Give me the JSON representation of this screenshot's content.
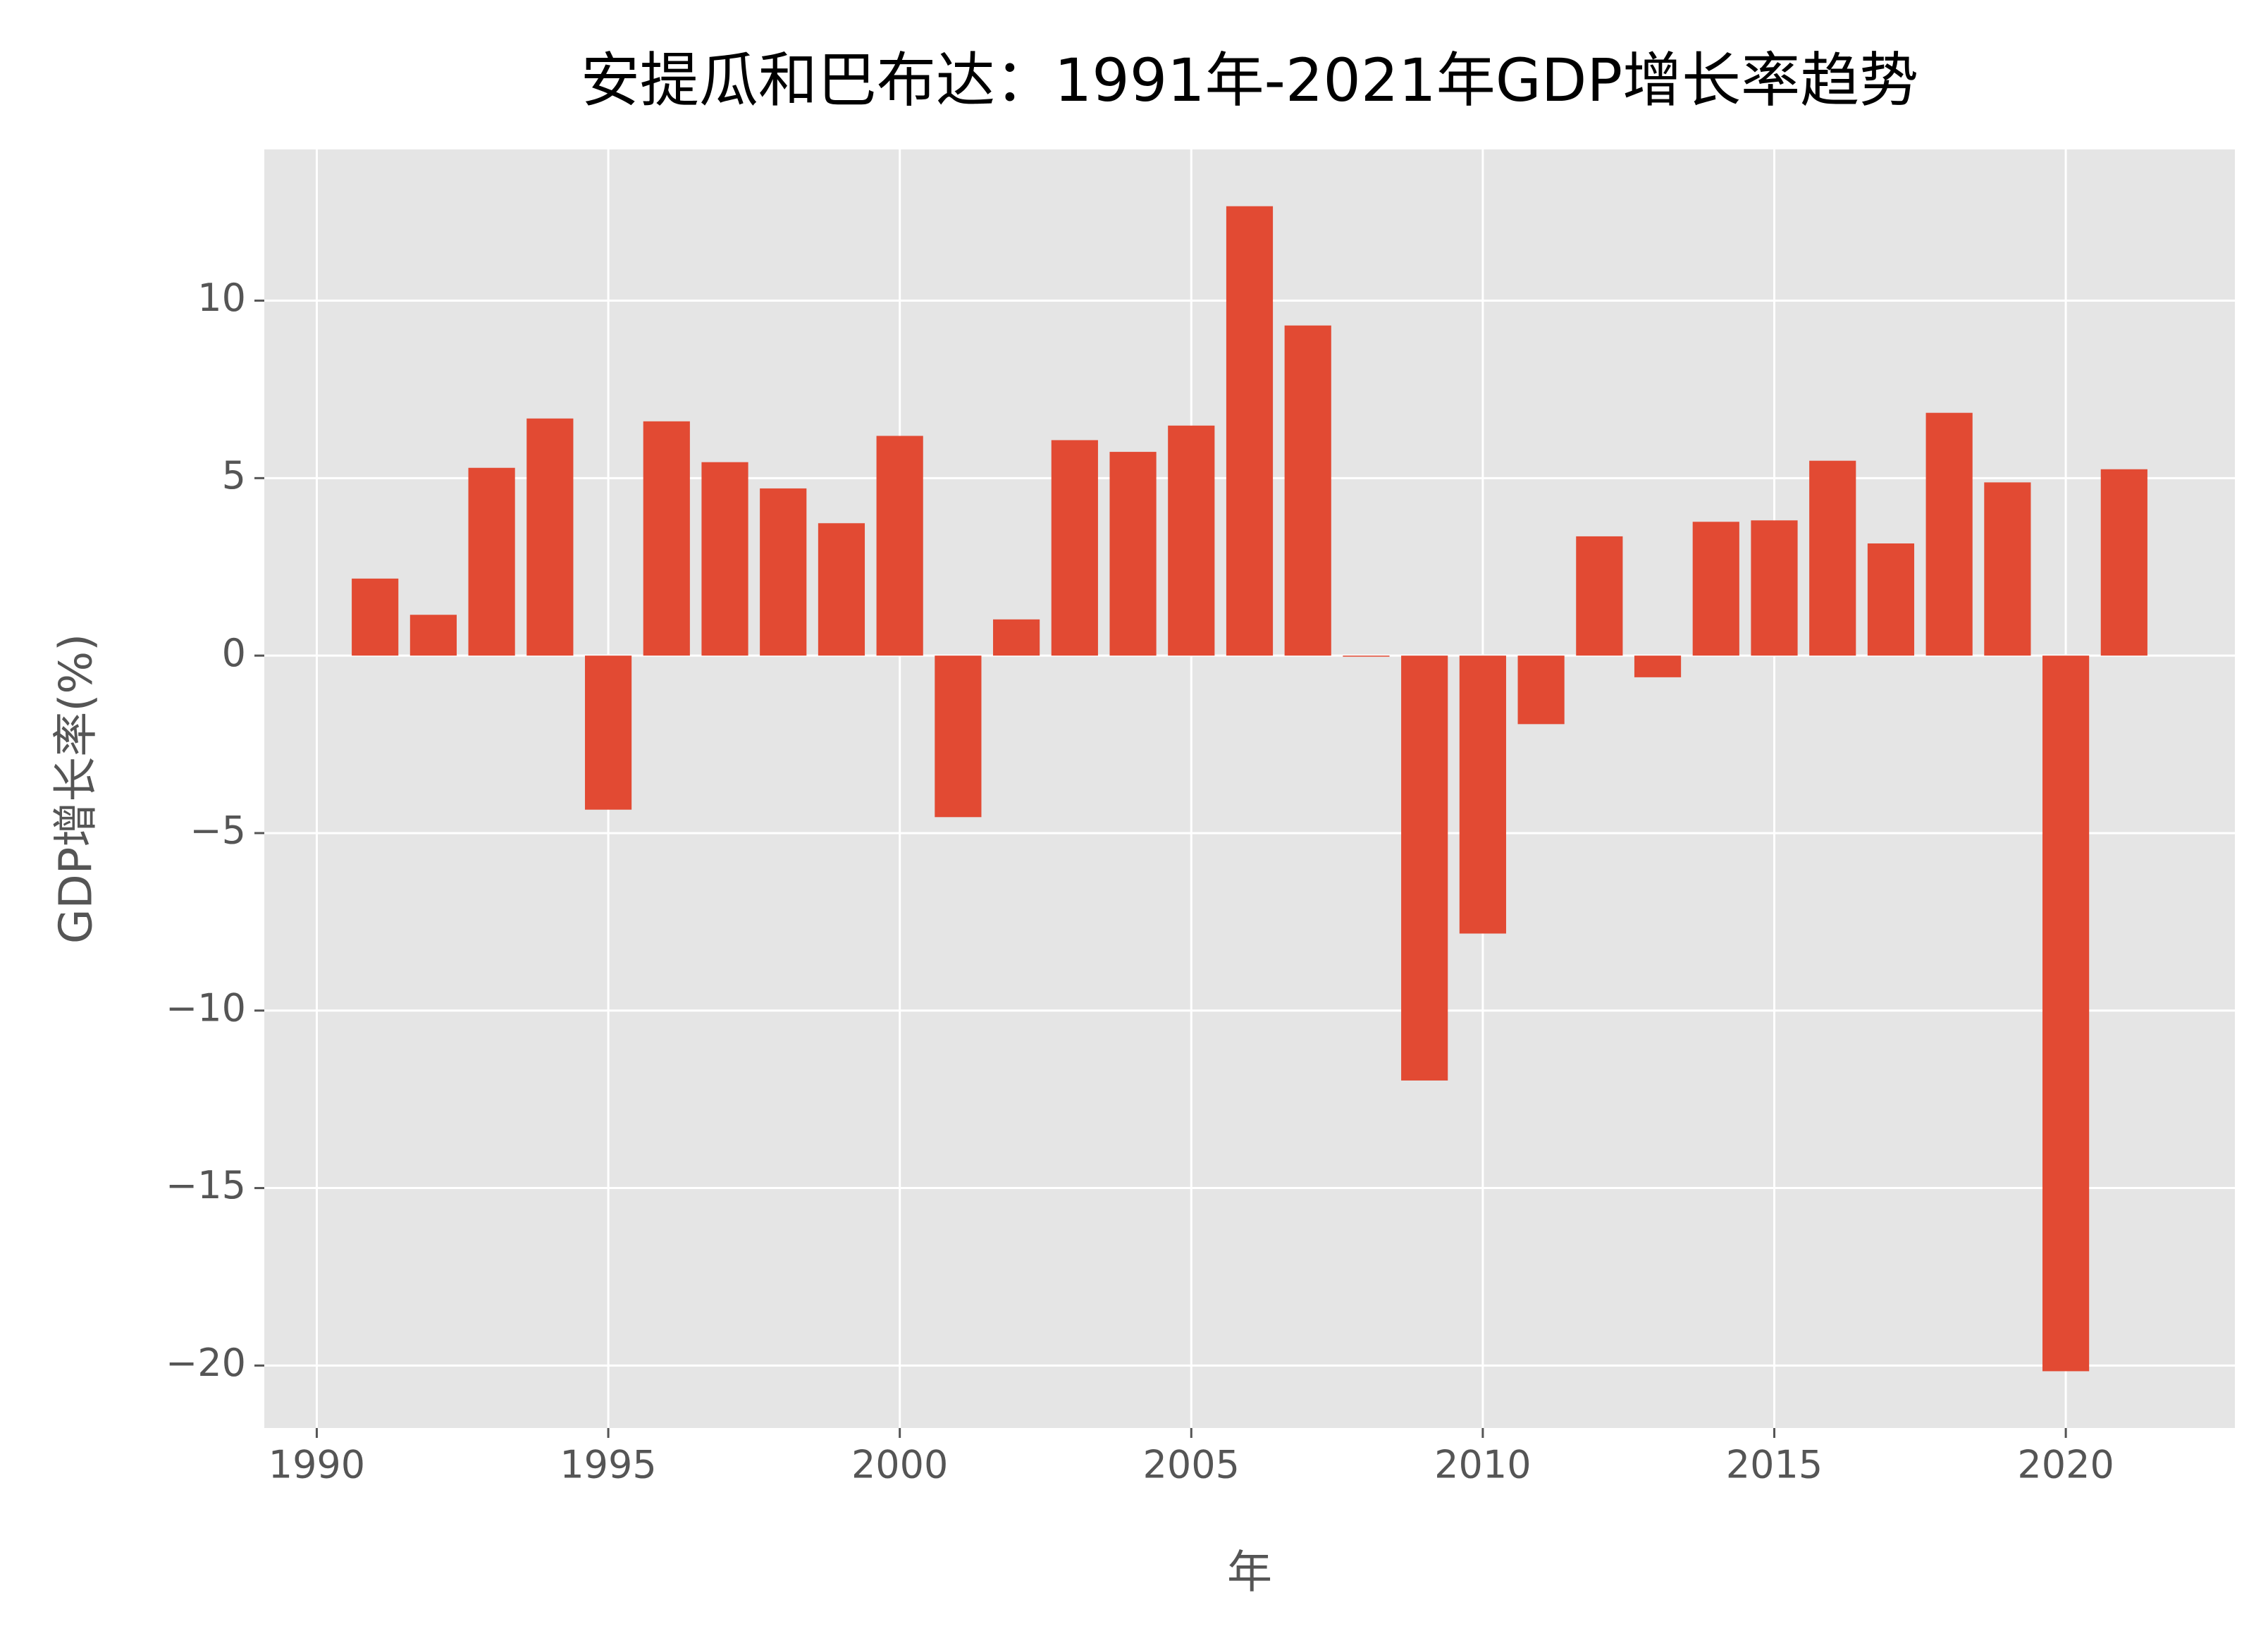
{
  "chart_data": {
    "type": "bar",
    "title": "安提瓜和巴布达：1991年-2021年GDP增长率趋势",
    "x_label": "年",
    "y_label": "GDP增长率(%)",
    "x": [
      1991,
      1992,
      1993,
      1994,
      1995,
      1996,
      1997,
      1998,
      1999,
      2000,
      2001,
      2002,
      2003,
      2004,
      2005,
      2006,
      2007,
      2008,
      2009,
      2010,
      2011,
      2012,
      2013,
      2014,
      2015,
      2016,
      2017,
      2018,
      2019,
      2020,
      2021
    ],
    "values": [
      2.17,
      1.15,
      5.29,
      6.68,
      -4.34,
      6.6,
      5.45,
      4.71,
      3.73,
      6.19,
      -4.55,
      1.02,
      6.07,
      5.74,
      6.48,
      12.66,
      9.3,
      -0.03,
      -11.97,
      -7.83,
      -1.93,
      3.36,
      -0.61,
      3.77,
      3.81,
      5.49,
      3.16,
      6.84,
      4.88,
      -20.16,
      5.25
    ],
    "color": "#e24a33",
    "xlim": [
      1989.1,
      2022.9
    ],
    "ylim": [
      -21.76,
      14.26
    ],
    "xticks": [
      1990,
      1995,
      2000,
      2005,
      2010,
      2015,
      2020
    ],
    "yticks": [
      {
        "value": -20,
        "label": "−20"
      },
      {
        "value": -15,
        "label": "−15"
      },
      {
        "value": -10,
        "label": "−10"
      },
      {
        "value": -5,
        "label": "−5"
      },
      0,
      5,
      10
    ],
    "grid": true,
    "background": "#e5e5e5"
  }
}
